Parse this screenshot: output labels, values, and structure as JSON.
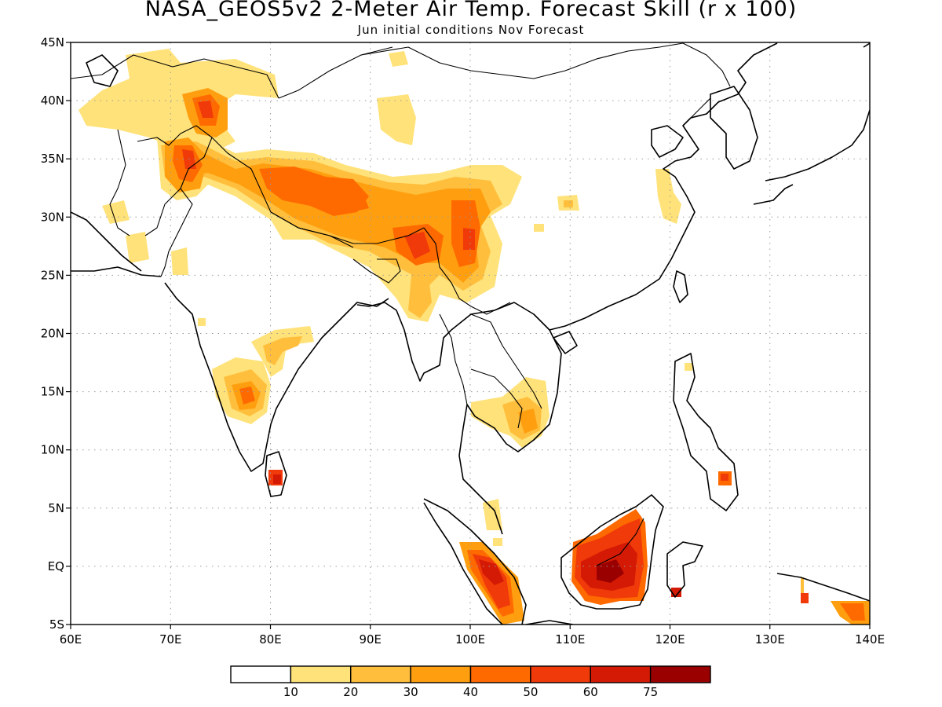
{
  "title": "NASA_GEOS5v2 2-Meter Air Temp. Forecast Skill (r x 100)",
  "subtitle": "Jun initial conditions  Nov Forecast",
  "map": {
    "lon_range": [
      60,
      140
    ],
    "lat_range": [
      -5,
      45
    ],
    "lat_labels": [
      "45N",
      "40N",
      "35N",
      "30N",
      "25N",
      "20N",
      "15N",
      "10N",
      "5N",
      "EQ",
      "5S"
    ],
    "lon_labels": [
      "60E",
      "70E",
      "80E",
      "90E",
      "100E",
      "110E",
      "120E",
      "130E",
      "140E"
    ],
    "colors": {
      "lt10": "#ffffff",
      "c10": "#ffe27a",
      "c20": "#ffbf3d",
      "c30": "#ff9f10",
      "c40": "#ff6a00",
      "c50": "#f03a0a",
      "c60": "#d41a05",
      "c75": "#9b0000"
    }
  },
  "colorbar": {
    "labels": [
      "10",
      "20",
      "30",
      "40",
      "50",
      "60",
      "75"
    ],
    "colors": [
      "#ffffff",
      "#ffe27a",
      "#ffbf3d",
      "#ff9f10",
      "#ff6a00",
      "#f03a0a",
      "#d41a05",
      "#9b0000"
    ]
  },
  "chart_data": {
    "type": "heatmap",
    "title": "NASA_GEOS5v2 2-Meter Air Temp. Forecast Skill (r x 100)",
    "subtitle": "Jun initial conditions  Nov Forecast",
    "xlabel": "",
    "ylabel": "",
    "xlim": [
      60,
      140
    ],
    "ylim": [
      -5,
      45
    ],
    "levels": [
      10,
      20,
      30,
      40,
      50,
      60,
      75
    ],
    "regions": [
      {
        "lon": 72.0,
        "lat": 34.5,
        "r": 55
      },
      {
        "lon": 73.5,
        "lat": 39.5,
        "r": 60
      },
      {
        "lon": 87.0,
        "lat": 32.0,
        "r": 45
      },
      {
        "lon": 95.0,
        "lat": 27.0,
        "r": 58
      },
      {
        "lon": 100.0,
        "lat": 27.5,
        "r": 50
      },
      {
        "lon": 78.0,
        "lat": 15.0,
        "r": 50
      },
      {
        "lon": 81.0,
        "lat": 7.5,
        "r": 60
      },
      {
        "lon": 102.5,
        "lat": 0.0,
        "r": 60
      },
      {
        "lon": 113.0,
        "lat": 0.5,
        "r": 70
      },
      {
        "lon": 104.0,
        "lat": 12.5,
        "r": 35
      },
      {
        "lon": 125.5,
        "lat": 7.5,
        "r": 45
      },
      {
        "lon": 138.0,
        "lat": -4.5,
        "r": 50
      }
    ]
  }
}
